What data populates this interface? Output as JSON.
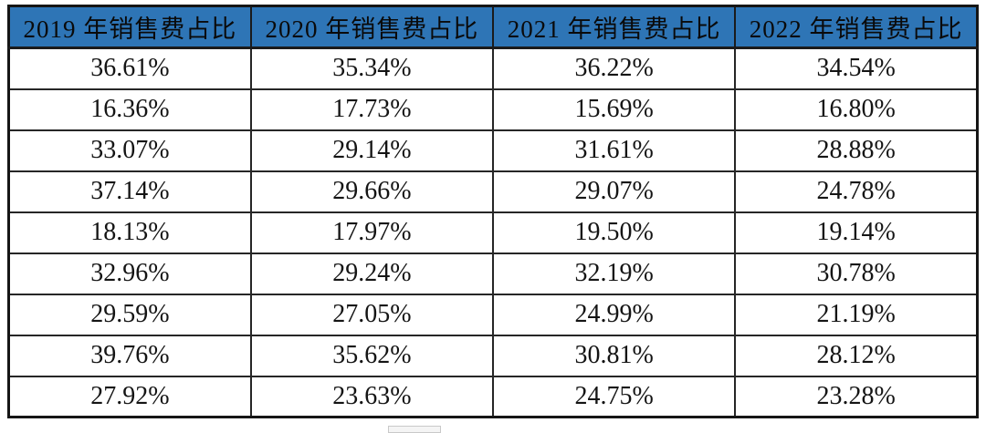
{
  "table": {
    "headers": [
      "2019 年销售费占比",
      "2020 年销售费占比",
      "2021 年销售费占比",
      "2022 年销售费占比"
    ],
    "rows": [
      [
        "36.61%",
        "35.34%",
        "36.22%",
        "34.54%"
      ],
      [
        "16.36%",
        "17.73%",
        "15.69%",
        "16.80%"
      ],
      [
        "33.07%",
        "29.14%",
        "31.61%",
        "28.88%"
      ],
      [
        "37.14%",
        "29.66%",
        "29.07%",
        "24.78%"
      ],
      [
        "18.13%",
        "17.97%",
        "19.50%",
        "19.14%"
      ],
      [
        "32.96%",
        "29.24%",
        "32.19%",
        "30.78%"
      ],
      [
        "29.59%",
        "27.05%",
        "24.99%",
        "21.19%"
      ],
      [
        "39.76%",
        "35.62%",
        "30.81%",
        "28.12%"
      ],
      [
        "27.92%",
        "23.63%",
        "24.75%",
        "23.28%"
      ]
    ]
  },
  "colors": {
    "header_bg": "#2E75B6",
    "border": "#1b1b1b",
    "text": "#141414"
  },
  "chart_data": {
    "type": "table",
    "columns": [
      "2019 年销售费占比",
      "2020 年销售费占比",
      "2021 年销售费占比",
      "2022 年销售费占比"
    ],
    "series": [
      {
        "name": "2019 年销售费占比",
        "values": [
          36.61,
          16.36,
          33.07,
          37.14,
          18.13,
          32.96,
          29.59,
          39.76,
          27.92
        ]
      },
      {
        "name": "2020 年销售费占比",
        "values": [
          35.34,
          17.73,
          29.14,
          29.66,
          17.97,
          29.24,
          27.05,
          35.62,
          23.63
        ]
      },
      {
        "name": "2021 年销售费占比",
        "values": [
          36.22,
          15.69,
          31.61,
          29.07,
          19.5,
          32.19,
          24.99,
          30.81,
          24.75
        ]
      },
      {
        "name": "2022 年销售费占比",
        "values": [
          34.54,
          16.8,
          28.88,
          24.78,
          19.14,
          30.78,
          21.19,
          28.12,
          23.28
        ]
      }
    ],
    "unit": "%",
    "title": "",
    "notes": "Percentages shown with two decimals and % sign in each cell"
  }
}
